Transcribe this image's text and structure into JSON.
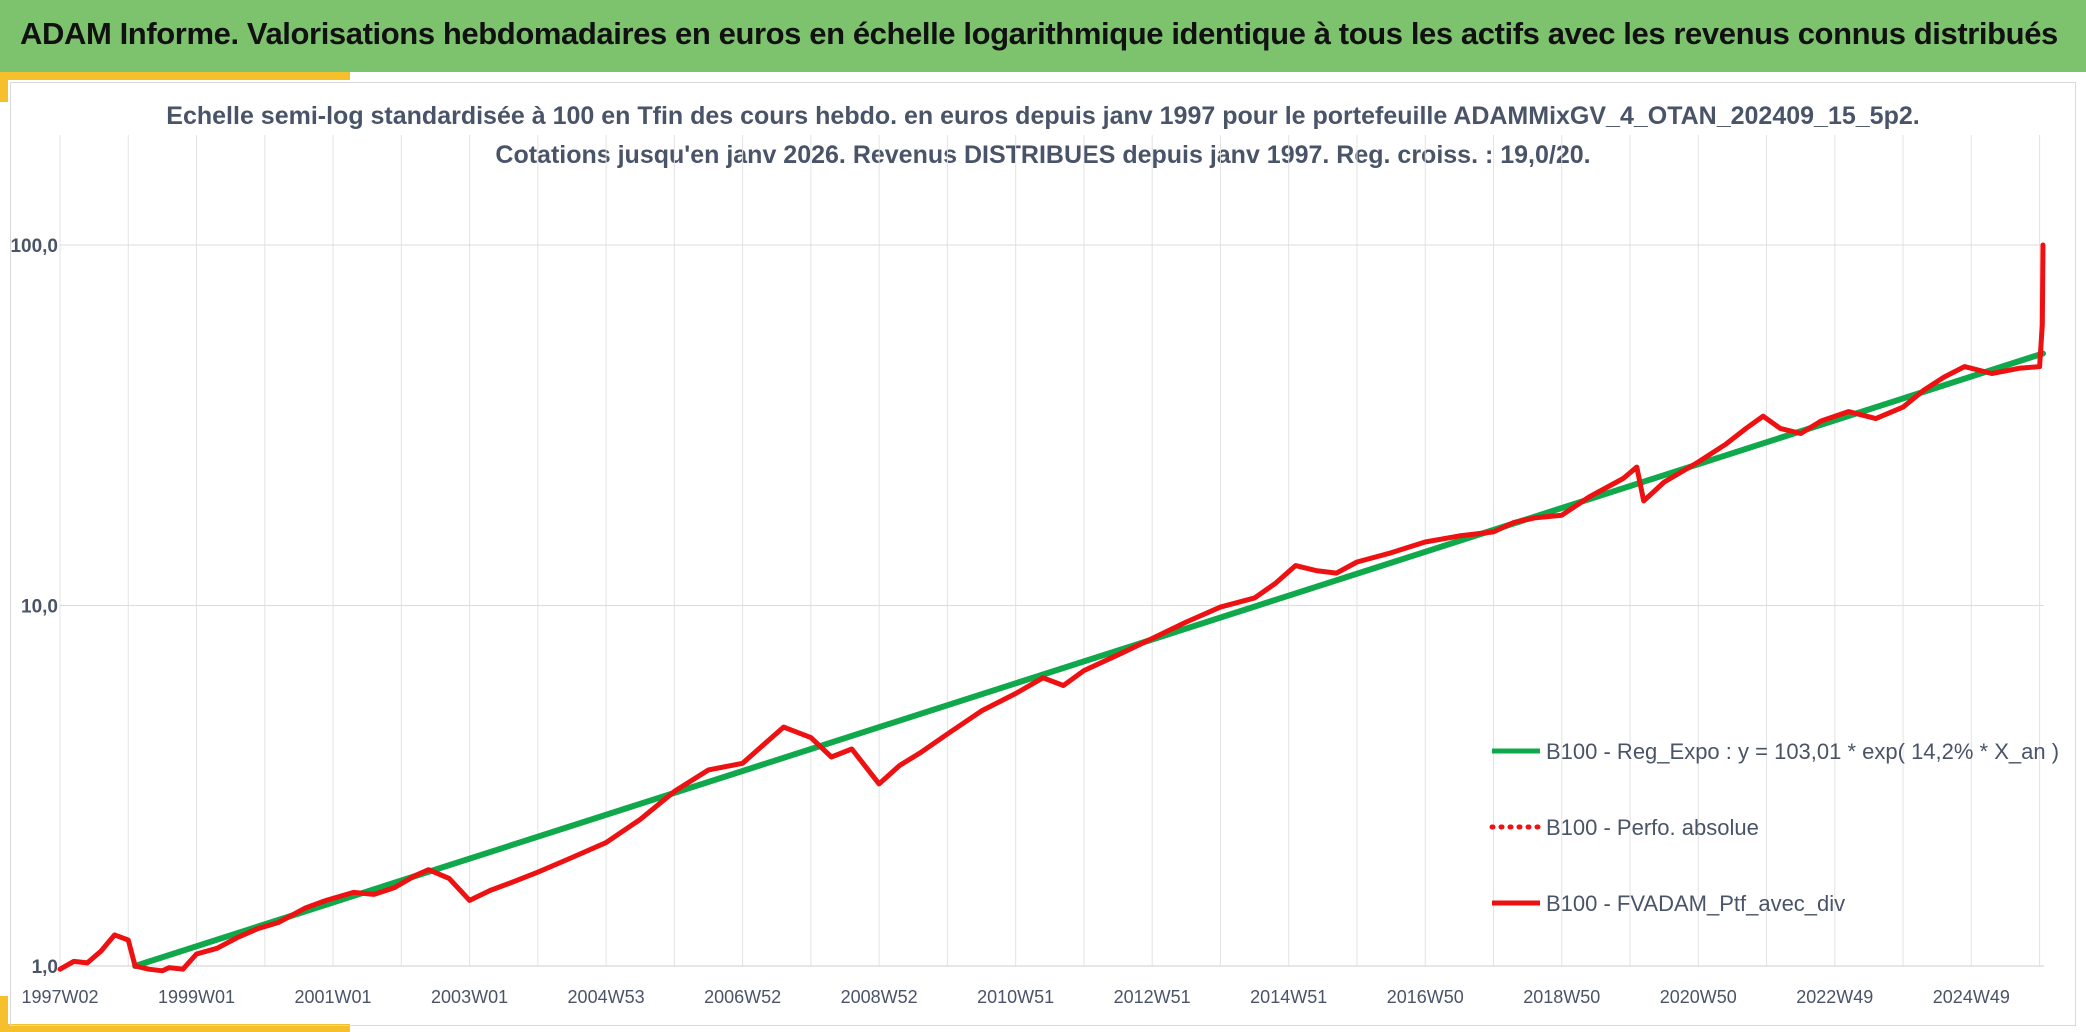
{
  "header": {
    "banner_title": "ADAM Informe. Valorisations hebdomadaires en euros en échelle logarithmique identique à tous les actifs avec les revenus connus distribués"
  },
  "colors": {
    "banner": "#7dc36e",
    "accent": "#f5c02b",
    "regression": "#0fa84a",
    "series": "#ee1111",
    "text": "#4a5468"
  },
  "chart_data": {
    "type": "line",
    "title_line1": "Echelle semi-log standardisée à 100 en Tfin des cours hebdo. en euros depuis janv 1997 pour le portefeuille ADAMMixGV_4_OTAN_202409_15_5p2.",
    "title_line2": "Cotations jusqu'en janv 2026. Revenus DISTRIBUES depuis janv 1997. Reg. croiss. : 19,0/20.",
    "y_scale": "log",
    "ylim": [
      1,
      100
    ],
    "y_ticks": [
      "1,0",
      "10,0",
      "100,0"
    ],
    "y_tick_values": [
      1,
      10,
      100
    ],
    "x_range": [
      1997.0,
      2026.05
    ],
    "x_ticks": [
      "1997W02",
      "1999W01",
      "2001W01",
      "2003W01",
      "2004W53",
      "2006W52",
      "2008W52",
      "2010W51",
      "2012W51",
      "2014W51",
      "2016W50",
      "2018W50",
      "2020W50",
      "2022W49",
      "2024W49"
    ],
    "x_tick_values": [
      1997.0,
      1999.0,
      2001.0,
      2003.0,
      2005.0,
      2007.0,
      2009.0,
      2011.0,
      2013.0,
      2015.0,
      2017.0,
      2019.0,
      2021.0,
      2023.0,
      2025.0
    ],
    "grid": "vertical-and-horizontal",
    "legend_position": "bottom-right",
    "series": [
      {
        "name": "B100 - Reg_Expo : y = 103,01 * exp( 14,2% *  X_an )",
        "style": "solid",
        "color": "#0fa84a",
        "x": [
          1998.1,
          2026.05
        ],
        "y": [
          1.0,
          50.0
        ]
      },
      {
        "name": "B100 - Perfo. absolue",
        "style": "dotted",
        "color": "#ee1111",
        "x": [],
        "y": []
      },
      {
        "name": "B100 - FVADAM_Ptf_avec_div",
        "style": "solid",
        "color": "#ee1111",
        "x": [
          1997.0,
          1997.2,
          1997.4,
          1997.6,
          1997.8,
          1998.0,
          1998.1,
          1998.3,
          1998.5,
          1998.6,
          1998.8,
          1999.0,
          1999.3,
          1999.6,
          1999.9,
          2000.2,
          2000.6,
          2000.9,
          2001.3,
          2001.6,
          2001.9,
          2002.2,
          2002.4,
          2002.7,
          2003.0,
          2003.3,
          2003.6,
          2004.0,
          2004.5,
          2005.0,
          2005.5,
          2006.0,
          2006.5,
          2007.0,
          2007.3,
          2007.6,
          2008.0,
          2008.3,
          2008.6,
          2009.0,
          2009.3,
          2009.6,
          2010.0,
          2010.5,
          2011.0,
          2011.4,
          2011.7,
          2012.0,
          2012.5,
          2013.0,
          2013.5,
          2014.0,
          2014.5,
          2014.8,
          2015.1,
          2015.4,
          2015.7,
          2016.0,
          2016.5,
          2017.0,
          2017.5,
          2018.0,
          2018.3,
          2018.6,
          2019.0,
          2019.4,
          2019.9,
          2020.1,
          2020.2,
          2020.5,
          2021.0,
          2021.4,
          2021.7,
          2021.95,
          2022.2,
          2022.5,
          2022.8,
          2023.2,
          2023.6,
          2024.0,
          2024.3,
          2024.6,
          2024.9,
          2025.3,
          2025.7,
          2026.0,
          2026.04,
          2026.05
        ],
        "y": [
          0.98,
          1.03,
          1.02,
          1.1,
          1.22,
          1.18,
          1.0,
          0.98,
          0.97,
          0.99,
          0.98,
          1.08,
          1.12,
          1.2,
          1.27,
          1.32,
          1.45,
          1.52,
          1.6,
          1.58,
          1.65,
          1.78,
          1.85,
          1.75,
          1.52,
          1.62,
          1.7,
          1.82,
          2.0,
          2.2,
          2.55,
          3.05,
          3.5,
          3.65,
          4.1,
          4.6,
          4.3,
          3.8,
          4.0,
          3.2,
          3.6,
          3.9,
          4.4,
          5.1,
          5.7,
          6.3,
          6.0,
          6.6,
          7.3,
          8.1,
          9.0,
          9.9,
          10.5,
          11.5,
          12.9,
          12.5,
          12.3,
          13.2,
          14.0,
          15.0,
          15.6,
          16.0,
          17.0,
          17.5,
          17.8,
          20.0,
          22.5,
          24.2,
          19.5,
          22.0,
          25.0,
          28.0,
          31.0,
          33.5,
          31.0,
          30.0,
          32.5,
          34.5,
          33.0,
          35.5,
          39.5,
          43.0,
          46.0,
          44.0,
          45.5,
          46.0,
          60.0,
          100.0
        ]
      }
    ]
  }
}
